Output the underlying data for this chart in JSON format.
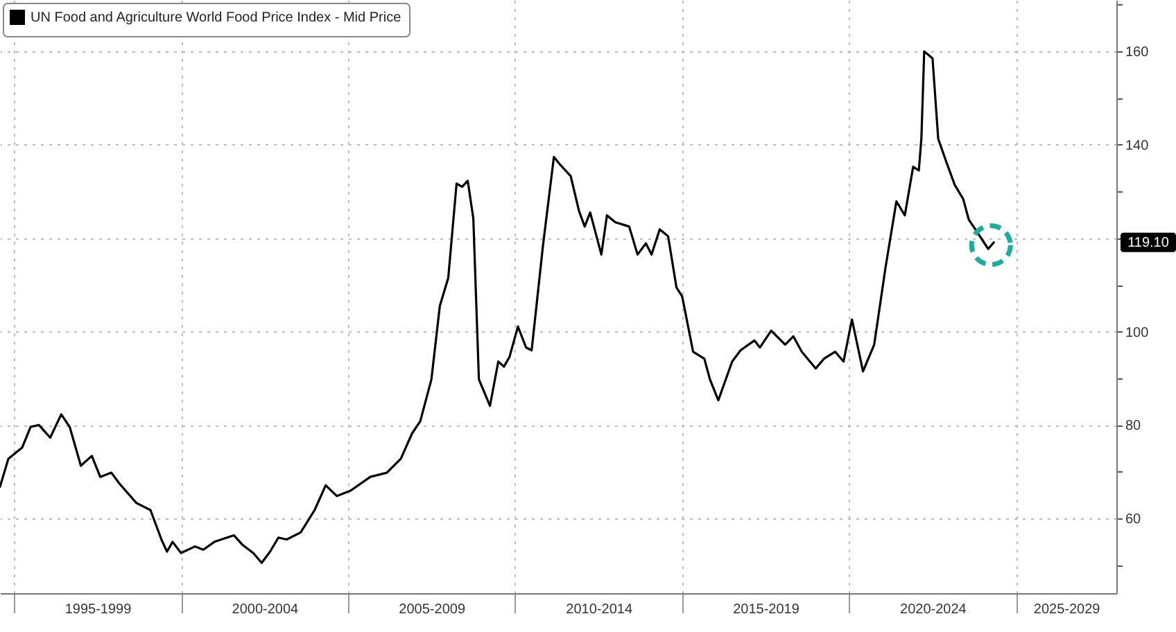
{
  "chart_data": {
    "type": "line",
    "x": [
      "1994-08",
      "1994-11",
      "1995-04",
      "1995-07",
      "1995-10",
      "1996-02",
      "1996-06",
      "1996-09",
      "1997-01",
      "1997-05",
      "1997-08",
      "1997-12",
      "1998-03",
      "1998-09",
      "1999-02",
      "1999-06",
      "1999-08",
      "1999-10",
      "2000-01",
      "2000-06",
      "2000-09",
      "2001-01",
      "2001-08",
      "2001-11",
      "2002-03",
      "2002-06",
      "2002-09",
      "2002-12",
      "2003-03",
      "2003-08",
      "2004-01",
      "2004-05",
      "2004-09",
      "2005-02",
      "2005-09",
      "2006-03",
      "2006-08",
      "2006-12",
      "2007-03",
      "2007-07",
      "2007-10",
      "2008-01",
      "2008-04",
      "2008-06",
      "2008-08",
      "2008-10",
      "2008-12",
      "2009-04",
      "2009-07",
      "2009-09",
      "2009-11",
      "2010-02",
      "2010-05",
      "2010-07",
      "2010-11",
      "2011-03",
      "2011-05",
      "2011-09",
      "2011-12",
      "2012-02",
      "2012-04",
      "2012-08",
      "2012-10",
      "2013-01",
      "2013-06",
      "2013-09",
      "2013-12",
      "2014-02",
      "2014-05",
      "2014-08",
      "2014-11",
      "2015-01",
      "2015-05",
      "2015-09",
      "2015-11",
      "2016-02",
      "2016-07",
      "2016-10",
      "2017-03",
      "2017-05",
      "2017-09",
      "2018-02",
      "2018-05",
      "2018-08",
      "2019-01",
      "2019-04",
      "2019-08",
      "2019-11",
      "2020-02",
      "2020-06",
      "2020-10",
      "2021-02",
      "2021-06",
      "2021-09",
      "2021-12",
      "2022-02",
      "2022-03",
      "2022-04",
      "2022-07",
      "2022-09",
      "2022-12",
      "2023-03",
      "2023-06",
      "2023-08",
      "2023-11",
      "2024-03",
      "2024-05"
    ],
    "series": [
      {
        "name": "UN Food and Agriculture World Food Price Index - Mid Price",
        "color": "#000000",
        "values": [
          66.8,
          72.8,
          75.2,
          79.6,
          80,
          77.3,
          82.3,
          79.6,
          71.3,
          73.4,
          68.9,
          69.8,
          67.4,
          63.3,
          61.8,
          55.5,
          52.9,
          55,
          52.6,
          54,
          53.3,
          55,
          56.4,
          54.4,
          52.6,
          50.5,
          52.9,
          55.9,
          55.5,
          57,
          61.8,
          67.1,
          64.8,
          66,
          68.9,
          69.8,
          72.8,
          78.2,
          80.8,
          89.8,
          105.5,
          111.5,
          131.7,
          131,
          132.3,
          124.3,
          89.8,
          84.1,
          93.6,
          92.5,
          94.6,
          101.1,
          96.6,
          96,
          118.3,
          137.4,
          135.9,
          133.3,
          125.8,
          122.5,
          125.5,
          116.5,
          124.9,
          123.4,
          122.5,
          116.5,
          118.9,
          116.5,
          121.9,
          120.4,
          109.4,
          107.6,
          95.7,
          94.2,
          89.8,
          85.3,
          93.6,
          96,
          98.1,
          96.6,
          100.2,
          97.2,
          99,
          95.7,
          92.1,
          94.2,
          95.7,
          93.6,
          102.6,
          91.5,
          97.2,
          113.6,
          127.9,
          124.9,
          135.3,
          134.5,
          141.3,
          160,
          158.5,
          141.3,
          136.2,
          131.4,
          128.4,
          124,
          121.3,
          117.7,
          119.1
        ]
      }
    ],
    "xlim": [
      "1994-08",
      "2028-01"
    ],
    "xticks": [
      {
        "value": "1995-01",
        "label": null
      },
      {
        "value": "1997-07",
        "label": "1995-1999"
      },
      {
        "value": "2000-01",
        "label": null
      },
      {
        "value": "2002-07",
        "label": "2000-2004"
      },
      {
        "value": "2005-01",
        "label": null
      },
      {
        "value": "2007-07",
        "label": "2005-2009"
      },
      {
        "value": "2010-01",
        "label": null
      },
      {
        "value": "2012-07",
        "label": "2010-2014"
      },
      {
        "value": "2015-01",
        "label": null
      },
      {
        "value": "2017-07",
        "label": "2015-2019"
      },
      {
        "value": "2020-01",
        "label": null
      },
      {
        "value": "2022-07",
        "label": "2020-2024"
      },
      {
        "value": "2025-01",
        "label": null
      },
      {
        "value": "2026-07",
        "label": "2025-2029"
      }
    ],
    "ylim": [
      44,
      171
    ],
    "yticks": [
      {
        "value": 50,
        "label": null
      },
      60,
      {
        "value": 70,
        "label": null
      },
      80,
      {
        "value": 90,
        "label": null
      },
      100,
      {
        "value": 110,
        "label": null
      },
      {
        "value": 120,
        "label": null
      },
      {
        "value": 130,
        "label": null
      },
      140,
      {
        "value": 150,
        "label": null
      },
      160,
      {
        "value": 170,
        "label": null
      }
    ],
    "annotations": [
      {
        "text": "119.10",
        "y": 119.1
      }
    ],
    "grid": true,
    "legend": "top left",
    "line_style": "solid",
    "marker": "none"
  }
}
